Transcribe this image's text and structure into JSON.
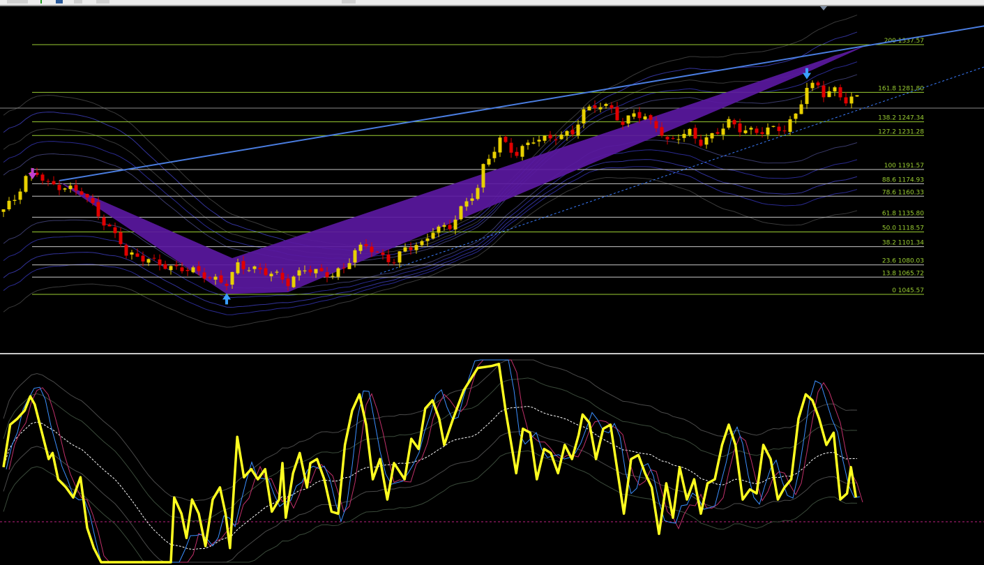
{
  "colors": {
    "background": "#000000",
    "bull_candle": "#e8d000",
    "bear_candle": "#e00000",
    "fib_main": "#9acd32",
    "fib_minor": "#c8c8c8",
    "pattern_fill": "#5a18a0",
    "trendline": "#4a7de0",
    "oscillator": "#ffff20",
    "signal_blue": "#3b8fff",
    "signal_magenta": "#c0306a"
  },
  "icons": [
    "pattern-start-arrow-down",
    "pattern-arrow-up",
    "pattern-arrow-down",
    "chart-shift-marker"
  ],
  "chart_data": [
    {
      "type": "candlestick",
      "title": "",
      "price_path": [
        [
          0,
          1145
        ],
        [
          2,
          1157
        ],
        [
          4,
          1182
        ],
        [
          6,
          1188
        ],
        [
          8,
          1174
        ],
        [
          11,
          1170
        ],
        [
          14,
          1166
        ],
        [
          16,
          1149
        ],
        [
          18,
          1129
        ],
        [
          21,
          1108
        ],
        [
          22,
          1092
        ],
        [
          25,
          1088
        ],
        [
          27,
          1084
        ],
        [
          30,
          1076
        ],
        [
          32,
          1076
        ],
        [
          35,
          1072
        ],
        [
          37,
          1064
        ],
        [
          40,
          1059
        ],
        [
          42,
          1080
        ],
        [
          44,
          1076
        ],
        [
          47,
          1072
        ],
        [
          49,
          1068
        ],
        [
          51,
          1059
        ],
        [
          54,
          1076
        ],
        [
          56,
          1072
        ],
        [
          59,
          1068
        ],
        [
          61,
          1076
        ],
        [
          63,
          1096
        ],
        [
          65,
          1104
        ],
        [
          67,
          1092
        ],
        [
          70,
          1084
        ],
        [
          72,
          1100
        ],
        [
          75,
          1104
        ],
        [
          77,
          1121
        ],
        [
          80,
          1125
        ],
        [
          82,
          1145
        ],
        [
          85,
          1170
        ],
        [
          86,
          1194
        ],
        [
          89,
          1227
        ],
        [
          91,
          1214
        ],
        [
          92,
          1210
        ],
        [
          95,
          1227
        ],
        [
          97,
          1227
        ],
        [
          100,
          1231
        ],
        [
          102,
          1235
        ],
        [
          104,
          1259
        ],
        [
          106,
          1267
        ],
        [
          109,
          1263
        ],
        [
          111,
          1243
        ],
        [
          113,
          1259
        ],
        [
          115,
          1251
        ],
        [
          117,
          1243
        ],
        [
          119,
          1223
        ],
        [
          121,
          1231
        ],
        [
          123,
          1235
        ],
        [
          125,
          1223
        ],
        [
          127,
          1231
        ],
        [
          130,
          1247
        ],
        [
          132,
          1239
        ],
        [
          135,
          1235
        ],
        [
          137,
          1239
        ],
        [
          140,
          1239
        ],
        [
          142,
          1255
        ],
        [
          144,
          1288
        ],
        [
          146,
          1290
        ],
        [
          147,
          1280
        ],
        [
          149,
          1284
        ],
        [
          151,
          1272
        ],
        [
          153,
          1276
        ]
      ],
      "current_price_line": 1263.3,
      "fib_levels": [
        {
          "ratio": "200",
          "price": "1337.57",
          "value": 1337.57,
          "major": true
        },
        {
          "ratio": "161.8",
          "price": "1281.80",
          "value": 1281.8,
          "major": true
        },
        {
          "ratio": "138.2",
          "price": "1247.34",
          "value": 1247.34,
          "major": true
        },
        {
          "ratio": "127.2",
          "price": "1231.28",
          "value": 1231.28,
          "major": true
        },
        {
          "ratio": "100",
          "price": "1191.57",
          "value": 1191.57,
          "major": false
        },
        {
          "ratio": "88.6",
          "price": "1174.93",
          "value": 1174.93,
          "major": false
        },
        {
          "ratio": "78.6",
          "price": "1160.33",
          "value": 1160.33,
          "major": false
        },
        {
          "ratio": "61.8",
          "price": "1135.80",
          "value": 1135.8,
          "major": false
        },
        {
          "ratio": "50.0",
          "price": "1118.57",
          "value": 1118.57,
          "major": true
        },
        {
          "ratio": "38.2",
          "price": "1101.34",
          "value": 1101.34,
          "major": false
        },
        {
          "ratio": "23.6",
          "price": "1080.03",
          "value": 1080.03,
          "major": false
        },
        {
          "ratio": "13.8",
          "price": "1065.72",
          "value": 1065.72,
          "major": false
        },
        {
          "ratio": "0",
          "price": "1045.57",
          "value": 1045.57,
          "major": true
        }
      ],
      "pattern_polygon": [
        [
          10,
          1177
        ],
        [
          41,
          1088
        ],
        [
          155,
          1337.6
        ],
        [
          145,
          1308
        ],
        [
          51,
          1048
        ],
        [
          40,
          1046
        ]
      ],
      "trendline": [
        [
          10,
          1178.5
        ],
        [
          176,
          1359.6
        ]
      ],
      "support_line": [
        [
          67.5,
          1070
        ],
        [
          176,
          1312
        ]
      ],
      "arrows": [
        {
          "type": "down",
          "bar": 5.2,
          "price": 1185,
          "color": "#c040d0"
        },
        {
          "type": "up",
          "bar": 40,
          "price": 1042,
          "color": "#3b9fff"
        },
        {
          "type": "down",
          "bar": 144,
          "price": 1302,
          "color": "#3b9fff"
        }
      ]
    },
    {
      "type": "line",
      "title": "",
      "ylim": [
        0,
        100
      ],
      "level_line": 20,
      "oscillator": [
        [
          0,
          47
        ],
        [
          1.2,
          68
        ],
        [
          2.5,
          71
        ],
        [
          3.8,
          75
        ],
        [
          4.8,
          82
        ],
        [
          5.6,
          78
        ],
        [
          6.9,
          64
        ],
        [
          8.1,
          51
        ],
        [
          8.8,
          54
        ],
        [
          9.8,
          41
        ],
        [
          11.2,
          37
        ],
        [
          12.5,
          32
        ],
        [
          13.8,
          42
        ],
        [
          15,
          17
        ],
        [
          16.2,
          7
        ],
        [
          17.5,
          0
        ],
        [
          30,
          0
        ],
        [
          30.6,
          32
        ],
        [
          31.9,
          24
        ],
        [
          32.8,
          12
        ],
        [
          33.8,
          31
        ],
        [
          35,
          24
        ],
        [
          36.2,
          8
        ],
        [
          37.5,
          31
        ],
        [
          38.8,
          37
        ],
        [
          39.8,
          24
        ],
        [
          40.6,
          7
        ],
        [
          41.9,
          62
        ],
        [
          43.1,
          42
        ],
        [
          44.4,
          46
        ],
        [
          45.6,
          41
        ],
        [
          46.9,
          46
        ],
        [
          48.1,
          25
        ],
        [
          49.4,
          31
        ],
        [
          50,
          49
        ],
        [
          50.6,
          22
        ],
        [
          51.9,
          44
        ],
        [
          53.1,
          54
        ],
        [
          54.4,
          37
        ],
        [
          55,
          49
        ],
        [
          56.2,
          51
        ],
        [
          57.5,
          41
        ],
        [
          58.8,
          25
        ],
        [
          60,
          24
        ],
        [
          61.2,
          58
        ],
        [
          62.5,
          75
        ],
        [
          63.8,
          83
        ],
        [
          65,
          68
        ],
        [
          66.2,
          41
        ],
        [
          67.5,
          51
        ],
        [
          68.8,
          31
        ],
        [
          70,
          49
        ],
        [
          71.9,
          41
        ],
        [
          73.1,
          61
        ],
        [
          74.4,
          56
        ],
        [
          75.6,
          76
        ],
        [
          76.9,
          80
        ],
        [
          78.1,
          71
        ],
        [
          79,
          58
        ],
        [
          80.6,
          71
        ],
        [
          82.5,
          85
        ],
        [
          85,
          96
        ],
        [
          87.5,
          97
        ],
        [
          88.8,
          98
        ],
        [
          90,
          75
        ],
        [
          91.9,
          44
        ],
        [
          93.1,
          66
        ],
        [
          94.4,
          64
        ],
        [
          95.6,
          41
        ],
        [
          96.9,
          56
        ],
        [
          98.1,
          54
        ],
        [
          99.4,
          44
        ],
        [
          100.6,
          58
        ],
        [
          101.9,
          51
        ],
        [
          103.1,
          63
        ],
        [
          103.8,
          73
        ],
        [
          105,
          69
        ],
        [
          106.2,
          51
        ],
        [
          107.5,
          66
        ],
        [
          108.8,
          68
        ],
        [
          110,
          46
        ],
        [
          111.2,
          24
        ],
        [
          112.5,
          51
        ],
        [
          113.8,
          53
        ],
        [
          115,
          44
        ],
        [
          116.2,
          37
        ],
        [
          117.5,
          14
        ],
        [
          118.8,
          39
        ],
        [
          120,
          22
        ],
        [
          121.2,
          47
        ],
        [
          122.5,
          31
        ],
        [
          123.8,
          41
        ],
        [
          125,
          24
        ],
        [
          126.2,
          39
        ],
        [
          127.5,
          41
        ],
        [
          128.8,
          58
        ],
        [
          130,
          68
        ],
        [
          131.2,
          58
        ],
        [
          132.5,
          31
        ],
        [
          133.8,
          36
        ],
        [
          135,
          34
        ],
        [
          136.2,
          58
        ],
        [
          137.5,
          51
        ],
        [
          138.8,
          31
        ],
        [
          140,
          37
        ],
        [
          141.2,
          41
        ],
        [
          142.5,
          71
        ],
        [
          143.8,
          83
        ],
        [
          145,
          80
        ],
        [
          146.2,
          71
        ],
        [
          147.5,
          58
        ],
        [
          148.8,
          64
        ],
        [
          150,
          31
        ],
        [
          151.2,
          34
        ],
        [
          151.9,
          47
        ],
        [
          152.8,
          32
        ]
      ]
    }
  ]
}
